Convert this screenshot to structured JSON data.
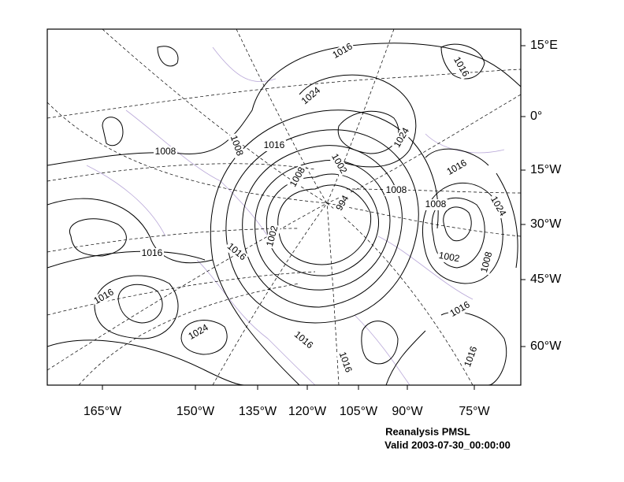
{
  "map": {
    "right_labels": [
      "15°E",
      "0°",
      "15°W",
      "30°W",
      "45°W",
      "60°W"
    ],
    "bottom_labels": [
      "165°W",
      "150°W",
      "135°W",
      "120°W",
      "105°W",
      "90°W",
      "75°W"
    ],
    "contour_labels": [
      "1016",
      "1016",
      "1024",
      "1008",
      "1016",
      "1008",
      "1002",
      "1008",
      "1024",
      "1016",
      "1008",
      "1008",
      "1024",
      "994",
      "1002",
      "1016",
      "1016",
      "1002",
      "1008",
      "1016",
      "1016",
      "1024",
      "1016",
      "1016",
      "1016"
    ],
    "caption": [
      "Reanalysis PMSL",
      "Valid 2003-07-30_00:00:00"
    ]
  }
}
